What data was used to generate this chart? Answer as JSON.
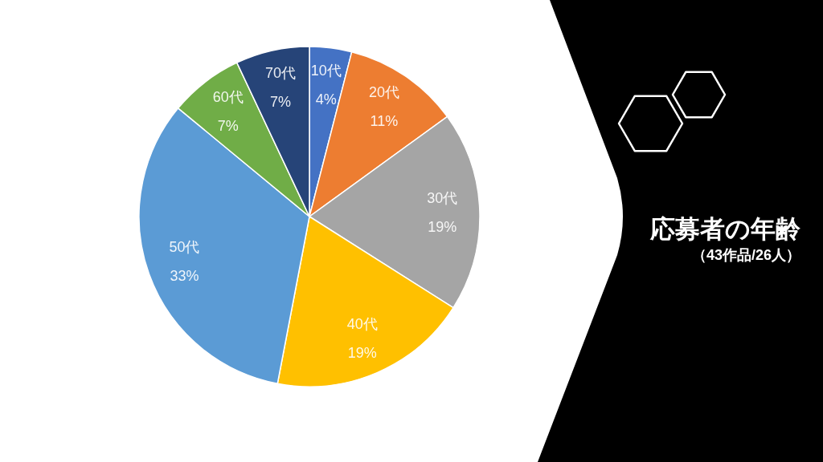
{
  "chart_data": {
    "type": "pie",
    "title": "応募者の年齢",
    "subtitle": "（43作品/26人）",
    "categories": [
      "10代",
      "20代",
      "30代",
      "40代",
      "50代",
      "60代",
      "70代"
    ],
    "values": [
      4,
      11,
      19,
      19,
      33,
      7,
      7
    ],
    "colors": [
      "#4472c4",
      "#ed7d31",
      "#a5a5a5",
      "#ffc000",
      "#5b9bd5",
      "#70ad47",
      "#264478"
    ],
    "value_labels": [
      "4%",
      "11%",
      "19%",
      "19%",
      "33%",
      "7%",
      "7%"
    ]
  }
}
